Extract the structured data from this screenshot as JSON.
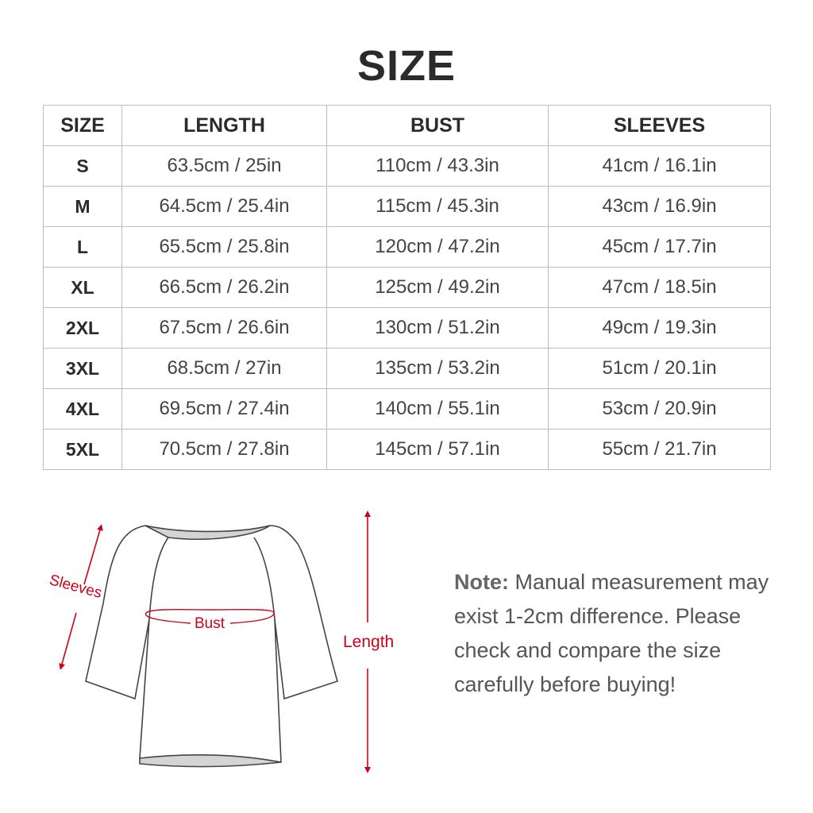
{
  "title": "SIZE",
  "table": {
    "headers": [
      "SIZE",
      "LENGTH",
      "BUST",
      "SLEEVES"
    ],
    "rows": [
      [
        "S",
        "63.5cm / 25in",
        "110cm / 43.3in",
        "41cm / 16.1in"
      ],
      [
        "M",
        "64.5cm / 25.4in",
        "115cm / 45.3in",
        "43cm / 16.9in"
      ],
      [
        "L",
        "65.5cm / 25.8in",
        "120cm / 47.2in",
        "45cm / 17.7in"
      ],
      [
        "XL",
        "66.5cm / 26.2in",
        "125cm / 49.2in",
        "47cm / 18.5in"
      ],
      [
        "2XL",
        "67.5cm / 26.6in",
        "130cm / 51.2in",
        "49cm / 19.3in"
      ],
      [
        "3XL",
        "68.5cm / 27in",
        "135cm / 53.2in",
        "51cm / 20.1in"
      ],
      [
        "4XL",
        "69.5cm / 27.4in",
        "140cm / 55.1in",
        "53cm / 20.9in"
      ],
      [
        "5XL",
        "70.5cm / 27.8in",
        "145cm / 57.1in",
        "55cm / 21.7in"
      ]
    ]
  },
  "diagram": {
    "labels": {
      "sleeves": "Sleeves",
      "bust": "Bust",
      "length": "Length"
    },
    "accent_color": "#d0021b"
  },
  "note": {
    "label": "Note:",
    "text": "Manual measurement may exist 1-2cm difference. Please check and compare the size carefully before buying!"
  }
}
